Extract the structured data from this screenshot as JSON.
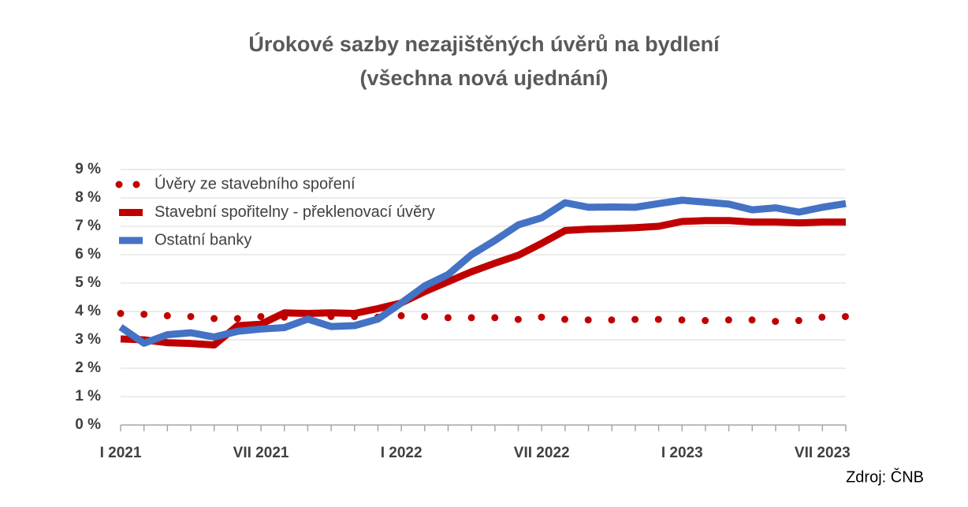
{
  "chart_data": {
    "type": "line",
    "title": "Úrokové sazby nezajištěných úvěrů na bydlení",
    "subtitle": "(všechna nová ujednání)",
    "source": "Zdroj: ČNB",
    "categories": [
      "I 2021",
      null,
      null,
      null,
      null,
      null,
      "VII 2021",
      null,
      null,
      null,
      null,
      null,
      "I 2022",
      null,
      null,
      null,
      null,
      null,
      "VII 2022",
      null,
      null,
      null,
      null,
      null,
      "I 2023",
      null,
      null,
      null,
      null,
      null,
      "VII 2023",
      null
    ],
    "series": [
      {
        "name": "Úvěry ze stavebního spoření",
        "color": "#c00000",
        "style": "dotted",
        "values": [
          3.93,
          3.9,
          3.85,
          3.82,
          3.75,
          3.75,
          3.82,
          3.8,
          3.8,
          3.82,
          3.82,
          3.8,
          3.85,
          3.82,
          3.78,
          3.78,
          3.78,
          3.72,
          3.8,
          3.72,
          3.7,
          3.7,
          3.72,
          3.72,
          3.7,
          3.68,
          3.7,
          3.7,
          3.65,
          3.68,
          3.8,
          3.82
        ]
      },
      {
        "name": "Stavební spořitelny - překlenovací úvěry",
        "color": "#c00000",
        "style": "solid",
        "values": [
          3.03,
          3.0,
          2.9,
          2.87,
          2.82,
          3.5,
          3.55,
          3.95,
          3.93,
          3.95,
          3.93,
          4.1,
          4.3,
          4.7,
          5.05,
          5.4,
          5.7,
          5.98,
          6.4,
          6.85,
          6.9,
          6.92,
          6.95,
          7.0,
          7.17,
          7.2,
          7.2,
          7.15,
          7.15,
          7.12,
          7.15,
          7.15
        ]
      },
      {
        "name": "Ostatní banky",
        "color": "#4472c4",
        "style": "solid",
        "values": [
          3.45,
          2.88,
          3.18,
          3.25,
          3.1,
          3.3,
          3.38,
          3.43,
          3.73,
          3.47,
          3.5,
          3.73,
          4.3,
          4.9,
          5.3,
          6.0,
          6.5,
          7.05,
          7.3,
          7.83,
          7.67,
          7.68,
          7.67,
          7.8,
          7.92,
          7.85,
          7.78,
          7.58,
          7.65,
          7.5,
          7.67,
          7.8
        ]
      }
    ],
    "ylim": [
      0,
      9
    ],
    "yticks": [
      {
        "value": 0,
        "label": "0 %"
      },
      {
        "value": 1,
        "label": "1 %"
      },
      {
        "value": 2,
        "label": "2 %"
      },
      {
        "value": 3,
        "label": "3 %"
      },
      {
        "value": 4,
        "label": "4 %"
      },
      {
        "value": 5,
        "label": "5 %"
      },
      {
        "value": 6,
        "label": "6 %"
      },
      {
        "value": 7,
        "label": "7 %"
      },
      {
        "value": 8,
        "label": "8 %"
      },
      {
        "value": 9,
        "label": "9 %"
      }
    ],
    "grid": true,
    "legend": "top-left"
  }
}
